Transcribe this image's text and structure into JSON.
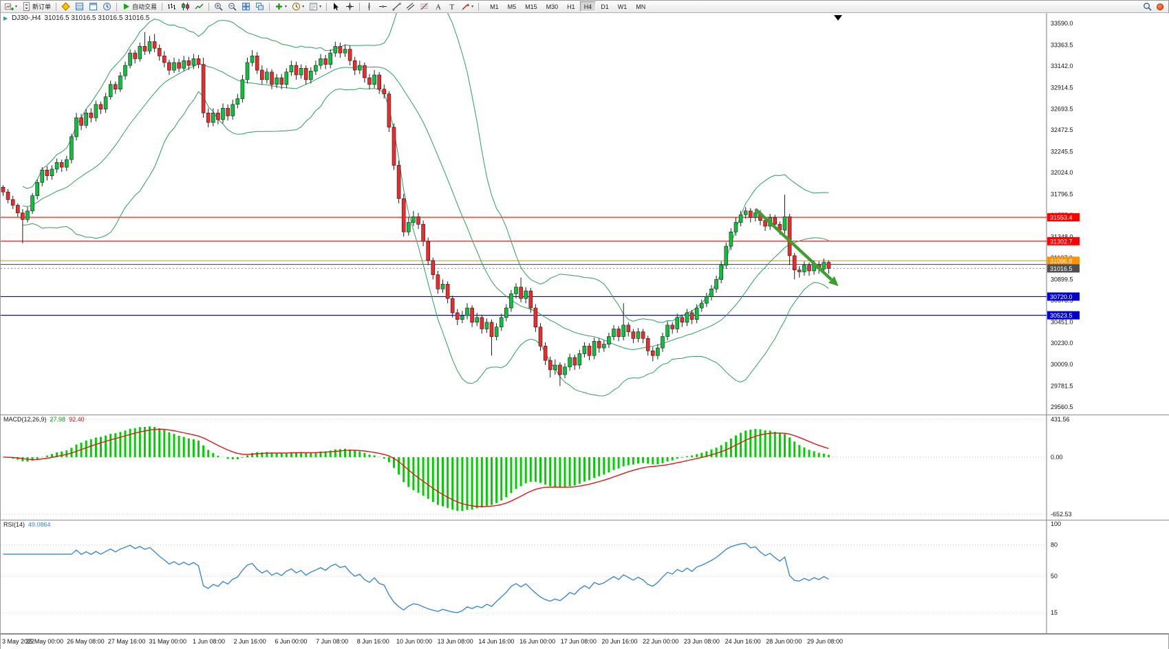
{
  "toolbar": {
    "new_order_label": "新订单",
    "autotrading_label": "自动交易",
    "timeframes": [
      "M1",
      "M5",
      "M15",
      "M30",
      "H1",
      "H4",
      "D1",
      "W1",
      "MN"
    ],
    "active_timeframe": "H4"
  },
  "chart": {
    "symbol_label": "DJ30-,H4",
    "ohlc_label": "31016.5 31016.5 31016.5 31016.5",
    "current_price": "31016.5",
    "axis_labels": [
      "33590.0",
      "33363.5",
      "33142.0",
      "32914.5",
      "32693.5",
      "32472.5",
      "32245.5",
      "32024.0",
      "31796.5",
      "31575.0",
      "31348.0",
      "31127.0",
      "30899.5",
      "30678.5",
      "30451.0",
      "30230.0",
      "30009.0",
      "29781.5",
      "29560.5"
    ],
    "sr_lines": [
      {
        "value": 31553.4,
        "label": "31553.4",
        "color": "#ff0000"
      },
      {
        "value": 31302.7,
        "label": "31302.7",
        "color": "#ff0000"
      },
      {
        "value": 31096.8,
        "label": "31096.8",
        "color": "#ff9000"
      },
      {
        "value": 31058.0,
        "label": null,
        "color": "#555555"
      },
      {
        "value": 30720.0,
        "label": "30720.0",
        "color": "#0000d0"
      },
      {
        "value": 30523.5,
        "label": "30523.5",
        "color": "#0000d0"
      }
    ],
    "arrow": {
      "from_bar": 154,
      "from_price": 31640,
      "to_bar": 171,
      "to_price": 30830
    }
  },
  "macd": {
    "label": "MACD(12,26,9)",
    "main_value": "27.98",
    "signal_value": "92.40",
    "axis": [
      "431.56",
      "0.00",
      "-652.53"
    ]
  },
  "rsi": {
    "label": "RSI(14)",
    "value": "49.0864",
    "levels": [
      "100",
      "80",
      "50",
      "15"
    ]
  },
  "time_axis": [
    "3 May 2022",
    "25 May 00:00",
    "26 May 08:00",
    "27 May 16:00",
    "31 May 00:00",
    "1 Jun 08:00",
    "2 Jun 16:00",
    "6 Jun 00:00",
    "7 Jun 08:00",
    "8 Jun 16:00",
    "10 Jun 00:00",
    "13 Jun 08:00",
    "14 Jun 16:00",
    "16 Jun 00:00",
    "17 Jun 08:00",
    "20 Jun 16:00",
    "22 Jun 00:00",
    "23 Jun 08:00",
    "24 Jun 16:00",
    "28 Jun 00:00",
    "29 Jun 08:00"
  ],
  "colors": {
    "bull": "#0fbf3f",
    "bear": "#ea2c2c",
    "wick": "#1c1c1c",
    "bollinger": "#2e9e5b",
    "macd_hist": "#00ce00",
    "macd_signal": "#e01616",
    "rsi": "#3d86d8",
    "arrow": "#3f9e2f",
    "price_tag": "#4f4f4f"
  },
  "chart_data": {
    "type": "candlestick",
    "symbol": "DJ30-",
    "timeframe": "H4",
    "ylim": [
      29480,
      33700
    ],
    "indicators": {
      "bollinger_period": 20,
      "bollinger_dev": 2,
      "macd": [
        12,
        26,
        9
      ],
      "rsi_period": 14
    },
    "candles": [
      [
        31870,
        31890,
        31780,
        31820
      ],
      [
        31820,
        31850,
        31700,
        31740
      ],
      [
        31740,
        31780,
        31640,
        31680
      ],
      [
        31680,
        31700,
        31560,
        31600
      ],
      [
        31600,
        31640,
        31280,
        31530
      ],
      [
        31530,
        31660,
        31500,
        31620
      ],
      [
        31620,
        31810,
        31590,
        31780
      ],
      [
        31780,
        31950,
        31740,
        31920
      ],
      [
        31920,
        32080,
        31880,
        32050
      ],
      [
        32050,
        32090,
        31940,
        31990
      ],
      [
        31990,
        32100,
        31950,
        32060
      ],
      [
        32060,
        32170,
        32020,
        32130
      ],
      [
        32130,
        32160,
        32030,
        32080
      ],
      [
        32080,
        32200,
        32040,
        32160
      ],
      [
        32160,
        32430,
        32120,
        32400
      ],
      [
        32400,
        32650,
        32360,
        32600
      ],
      [
        32600,
        32640,
        32470,
        32520
      ],
      [
        32520,
        32690,
        32490,
        32650
      ],
      [
        32650,
        32700,
        32550,
        32600
      ],
      [
        32600,
        32780,
        32560,
        32740
      ],
      [
        32740,
        32770,
        32640,
        32690
      ],
      [
        32690,
        32860,
        32650,
        32820
      ],
      [
        32820,
        32990,
        32790,
        32950
      ],
      [
        32950,
        32980,
        32850,
        32900
      ],
      [
        32900,
        33080,
        32870,
        33040
      ],
      [
        33040,
        33190,
        33000,
        33150
      ],
      [
        33150,
        33320,
        33120,
        33280
      ],
      [
        33280,
        33310,
        33170,
        33220
      ],
      [
        33220,
        33390,
        33190,
        33350
      ],
      [
        33350,
        33500,
        33260,
        33300
      ],
      [
        33300,
        33460,
        33270,
        33400
      ],
      [
        33400,
        33480,
        33290,
        33330
      ],
      [
        33330,
        33370,
        33200,
        33250
      ],
      [
        33250,
        33300,
        33130,
        33180
      ],
      [
        33180,
        33210,
        33050,
        33100
      ],
      [
        33100,
        33230,
        33070,
        33180
      ],
      [
        33180,
        33220,
        33080,
        33120
      ],
      [
        33120,
        33250,
        33090,
        33200
      ],
      [
        33200,
        33240,
        33100,
        33150
      ],
      [
        33150,
        33270,
        33110,
        33220
      ],
      [
        33220,
        33260,
        33120,
        33160
      ],
      [
        33160,
        33230,
        32600,
        32650
      ],
      [
        32650,
        32700,
        32500,
        32550
      ],
      [
        32550,
        32700,
        32510,
        32650
      ],
      [
        32650,
        32690,
        32530,
        32580
      ],
      [
        32580,
        32750,
        32540,
        32700
      ],
      [
        32700,
        32740,
        32570,
        32620
      ],
      [
        32620,
        32790,
        32580,
        32740
      ],
      [
        32740,
        32850,
        32700,
        32800
      ],
      [
        32800,
        33050,
        32760,
        33000
      ],
      [
        33000,
        33230,
        32960,
        33180
      ],
      [
        33180,
        33310,
        33140,
        33250
      ],
      [
        33250,
        33290,
        33060,
        33100
      ],
      [
        33100,
        33150,
        32950,
        33000
      ],
      [
        33000,
        33120,
        32960,
        33080
      ],
      [
        33080,
        33110,
        32900,
        32950
      ],
      [
        32950,
        33060,
        32910,
        33020
      ],
      [
        33020,
        33060,
        32900,
        32950
      ],
      [
        32950,
        33120,
        32910,
        33080
      ],
      [
        33080,
        33200,
        33040,
        33150
      ],
      [
        33150,
        33190,
        33000,
        33050
      ],
      [
        33050,
        33160,
        33010,
        33120
      ],
      [
        33120,
        33150,
        32950,
        33000
      ],
      [
        33000,
        33130,
        32960,
        33090
      ],
      [
        33090,
        33200,
        33050,
        33150
      ],
      [
        33150,
        33270,
        33110,
        33220
      ],
      [
        33220,
        33260,
        33110,
        33160
      ],
      [
        33160,
        33320,
        33120,
        33280
      ],
      [
        33280,
        33400,
        33240,
        33350
      ],
      [
        33350,
        33390,
        33230,
        33280
      ],
      [
        33280,
        33370,
        33240,
        33320
      ],
      [
        33320,
        33360,
        33150,
        33200
      ],
      [
        33200,
        33240,
        33050,
        33100
      ],
      [
        33100,
        33200,
        33060,
        33150
      ],
      [
        33150,
        33180,
        32970,
        33020
      ],
      [
        33020,
        33060,
        32900,
        32950
      ],
      [
        32950,
        33100,
        32910,
        33050
      ],
      [
        33050,
        33080,
        32850,
        32900
      ],
      [
        32900,
        32950,
        32800,
        32850
      ],
      [
        32850,
        32880,
        32450,
        32500
      ],
      [
        32500,
        32540,
        32050,
        32100
      ],
      [
        32100,
        32150,
        31700,
        31750
      ],
      [
        31750,
        31800,
        31350,
        31400
      ],
      [
        31400,
        31560,
        31360,
        31500
      ],
      [
        31500,
        31620,
        31460,
        31560
      ],
      [
        31560,
        31600,
        31430,
        31480
      ],
      [
        31480,
        31520,
        31250,
        31300
      ],
      [
        31300,
        31340,
        31050,
        31100
      ],
      [
        31100,
        31130,
        30900,
        30950
      ],
      [
        30950,
        30990,
        30750,
        30800
      ],
      [
        30800,
        30900,
        30760,
        30850
      ],
      [
        30850,
        30880,
        30650,
        30700
      ],
      [
        30700,
        30730,
        30500,
        30550
      ],
      [
        30550,
        30590,
        30420,
        30480
      ],
      [
        30480,
        30570,
        30440,
        30520
      ],
      [
        30520,
        30650,
        30480,
        30600
      ],
      [
        30600,
        30630,
        30400,
        30450
      ],
      [
        30450,
        30550,
        30410,
        30500
      ],
      [
        30500,
        30530,
        30330,
        30380
      ],
      [
        30380,
        30490,
        30340,
        30450
      ],
      [
        30450,
        30480,
        30100,
        30300
      ],
      [
        30300,
        30440,
        30260,
        30400
      ],
      [
        30400,
        30540,
        30360,
        30500
      ],
      [
        30500,
        30640,
        30460,
        30600
      ],
      [
        30600,
        30790,
        30560,
        30750
      ],
      [
        30750,
        30860,
        30700,
        30820
      ],
      [
        30820,
        30920,
        30660,
        30700
      ],
      [
        30700,
        30820,
        30650,
        30780
      ],
      [
        30780,
        30810,
        30550,
        30600
      ],
      [
        30600,
        30640,
        30350,
        30400
      ],
      [
        30400,
        30440,
        30150,
        30200
      ],
      [
        30200,
        30240,
        30000,
        30050
      ],
      [
        30050,
        30090,
        29870,
        29950
      ],
      [
        29950,
        30060,
        29900,
        30000
      ],
      [
        30000,
        30030,
        29780,
        29900
      ],
      [
        29900,
        30020,
        29860,
        29980
      ],
      [
        29980,
        30120,
        29940,
        30080
      ],
      [
        30080,
        30110,
        29950,
        30000
      ],
      [
        30000,
        30160,
        29960,
        30120
      ],
      [
        30120,
        30240,
        30080,
        30200
      ],
      [
        30200,
        30230,
        30050,
        30100
      ],
      [
        30100,
        30290,
        30060,
        30250
      ],
      [
        30250,
        30280,
        30130,
        30180
      ],
      [
        30180,
        30260,
        30140,
        30220
      ],
      [
        30220,
        30340,
        30180,
        30300
      ],
      [
        30300,
        30420,
        30260,
        30380
      ],
      [
        30380,
        30410,
        30250,
        30300
      ],
      [
        30300,
        30650,
        30260,
        30420
      ],
      [
        30420,
        30450,
        30300,
        30350
      ],
      [
        30350,
        30380,
        30230,
        30280
      ],
      [
        30280,
        30390,
        30240,
        30350
      ],
      [
        30350,
        30380,
        30230,
        30280
      ],
      [
        30280,
        30310,
        30100,
        30150
      ],
      [
        30150,
        30190,
        30040,
        30100
      ],
      [
        30100,
        30220,
        30060,
        30180
      ],
      [
        30180,
        30340,
        30140,
        30300
      ],
      [
        30300,
        30460,
        30260,
        30420
      ],
      [
        30420,
        30450,
        30330,
        30380
      ],
      [
        30380,
        30540,
        30340,
        30500
      ],
      [
        30500,
        30530,
        30400,
        30450
      ],
      [
        30450,
        30590,
        30410,
        30550
      ],
      [
        30550,
        30580,
        30430,
        30480
      ],
      [
        30480,
        30640,
        30440,
        30600
      ],
      [
        30600,
        30690,
        30560,
        30650
      ],
      [
        30650,
        30760,
        30610,
        30720
      ],
      [
        30720,
        30840,
        30680,
        30800
      ],
      [
        30800,
        30940,
        30760,
        30900
      ],
      [
        30900,
        31090,
        30860,
        31050
      ],
      [
        31050,
        31290,
        31010,
        31250
      ],
      [
        31250,
        31440,
        31210,
        31400
      ],
      [
        31400,
        31550,
        31360,
        31500
      ],
      [
        31500,
        31620,
        31460,
        31580
      ],
      [
        31580,
        31660,
        31540,
        31620
      ],
      [
        31620,
        31650,
        31500,
        31550
      ],
      [
        31550,
        31640,
        31510,
        31600
      ],
      [
        31600,
        31630,
        31470,
        31520
      ],
      [
        31520,
        31550,
        31410,
        31460
      ],
      [
        31460,
        31590,
        31420,
        31550
      ],
      [
        31550,
        31580,
        31430,
        31480
      ],
      [
        31480,
        31510,
        31370,
        31420
      ],
      [
        31420,
        31790,
        31380,
        31560
      ],
      [
        31560,
        31590,
        31050,
        31150
      ],
      [
        31150,
        31180,
        30900,
        31000
      ],
      [
        31000,
        31040,
        30920,
        30980
      ],
      [
        30980,
        31090,
        30940,
        31050
      ],
      [
        31050,
        31080,
        30940,
        30990
      ],
      [
        30990,
        31100,
        30950,
        31060
      ],
      [
        31060,
        31090,
        30960,
        31010
      ],
      [
        31010,
        31120,
        30970,
        31080
      ],
      [
        31080,
        31100,
        30960,
        31016.5
      ]
    ]
  }
}
